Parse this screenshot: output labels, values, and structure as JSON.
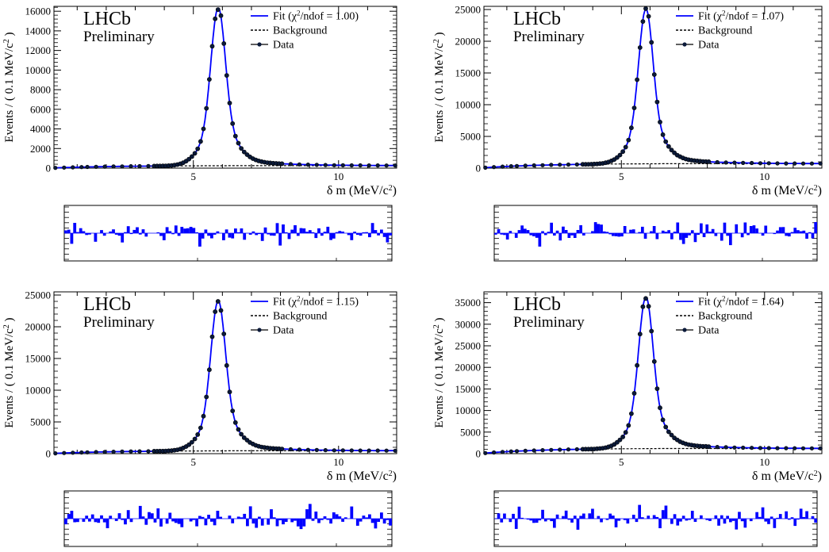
{
  "chart_data": [
    {
      "type": "line",
      "experiment": "LHCb",
      "status": "Preliminary",
      "xlabel": "δ m (MeV/c²)",
      "ylabel": "Events / ( 0.1 MeV/c² )",
      "xlim": [
        0.2,
        12
      ],
      "ylim": [
        0,
        16500
      ],
      "x_ticks": [
        5,
        10
      ],
      "y_ticks": [
        0,
        2000,
        4000,
        6000,
        8000,
        10000,
        12000,
        14000,
        16000
      ],
      "peak_x": 5.85,
      "peak_height": 16300,
      "background_level": 250,
      "legend": {
        "placement": "top-right",
        "fit": "Fit (χ²/ndof = 1.00)",
        "background": "Background",
        "data": "Data"
      },
      "pull_range": [
        -5,
        5
      ]
    },
    {
      "type": "line",
      "experiment": "LHCb",
      "status": "Preliminary",
      "xlabel": "δ m (MeV/c²)",
      "ylabel": "Events / ( 0.1 MeV/c² )",
      "xlim": [
        0.2,
        12
      ],
      "ylim": [
        0,
        25500
      ],
      "x_ticks": [
        5,
        10
      ],
      "y_ticks": [
        0,
        5000,
        10000,
        15000,
        20000,
        25000
      ],
      "peak_x": 5.85,
      "peak_height": 25000,
      "background_level": 700,
      "legend": {
        "placement": "top-right",
        "fit": "Fit (χ²/ndof = 1.07)",
        "background": "Background",
        "data": "Data"
      },
      "pull_range": [
        -5,
        5
      ]
    },
    {
      "type": "line",
      "experiment": "LHCb",
      "status": "Preliminary",
      "xlabel": "δ m (MeV/c²)",
      "ylabel": "Events / ( 0.1 MeV/c² )",
      "xlim": [
        0.2,
        12
      ],
      "ylim": [
        0,
        25500
      ],
      "x_ticks": [
        5,
        10
      ],
      "y_ticks": [
        0,
        5000,
        10000,
        15000,
        20000,
        25000
      ],
      "peak_x": 5.85,
      "peak_height": 24000,
      "background_level": 450,
      "legend": {
        "placement": "top-right",
        "fit": "Fit (χ²/ndof = 1.15)",
        "background": "Background",
        "data": "Data"
      },
      "pull_range": [
        -5,
        5
      ]
    },
    {
      "type": "line",
      "experiment": "LHCb",
      "status": "Preliminary",
      "xlabel": "δ m (MeV/c²)",
      "ylabel": "Events / ( 0.1 MeV/c² )",
      "xlim": [
        0.2,
        12
      ],
      "ylim": [
        0,
        37500
      ],
      "x_ticks": [
        5,
        10
      ],
      "y_ticks": [
        0,
        5000,
        10000,
        15000,
        20000,
        25000,
        30000,
        35000
      ],
      "peak_x": 5.85,
      "peak_height": 36200,
      "background_level": 1200,
      "legend": {
        "placement": "top-right",
        "fit": "Fit (χ²/ndof = 1.64)",
        "background": "Background",
        "data": "Data"
      },
      "pull_range": [
        -5,
        5
      ]
    }
  ],
  "colors": {
    "fit": "#0000ff",
    "data": "#000000",
    "pull": "#0000ff"
  }
}
